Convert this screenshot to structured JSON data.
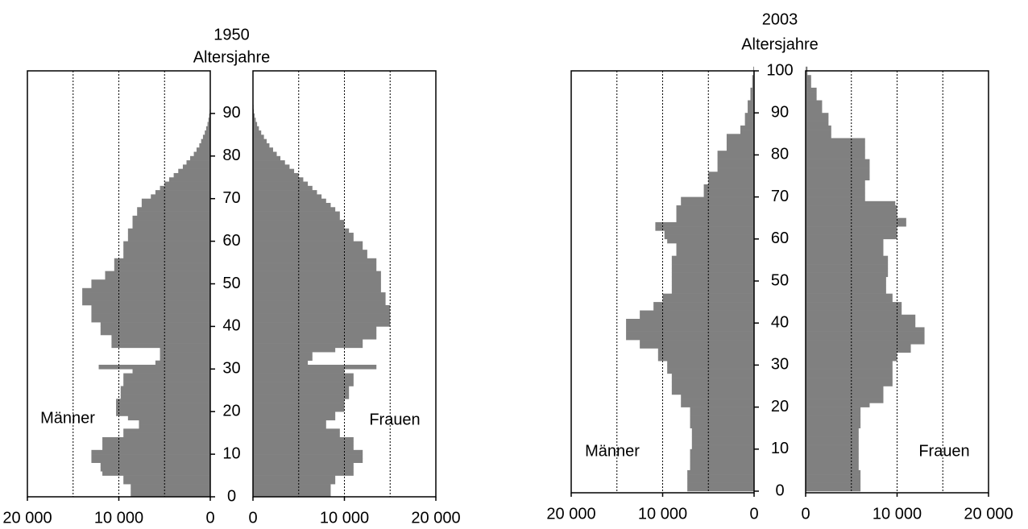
{
  "chart_data": [
    {
      "type": "population_pyramid",
      "title": "1950",
      "y_label": "Altersjahre",
      "x": [
        0,
        1,
        2,
        3,
        4,
        5,
        6,
        7,
        8,
        9,
        10,
        11,
        12,
        13,
        14,
        15,
        16,
        17,
        18,
        19,
        20,
        21,
        22,
        23,
        24,
        25,
        26,
        27,
        28,
        29,
        30,
        31,
        32,
        33,
        34,
        35,
        36,
        37,
        38,
        39,
        40,
        41,
        42,
        43,
        44,
        45,
        46,
        47,
        48,
        49,
        50,
        51,
        52,
        53,
        54,
        55,
        56,
        57,
        58,
        59,
        60,
        61,
        62,
        63,
        64,
        65,
        66,
        67,
        68,
        69,
        70,
        71,
        72,
        73,
        74,
        75,
        76,
        77,
        78,
        79,
        80,
        81,
        82,
        83,
        84,
        85,
        86,
        87,
        88,
        89,
        90,
        91,
        92,
        93,
        94,
        95
      ],
      "series": [
        {
          "name": "Männer",
          "color": "#808080",
          "side": "left",
          "values": [
            8700,
            8700,
            8700,
            9500,
            9500,
            11800,
            12000,
            12000,
            13000,
            13000,
            13000,
            11800,
            11800,
            11800,
            9500,
            9500,
            7800,
            7800,
            9000,
            10300,
            10300,
            10300,
            10300,
            9800,
            9800,
            9800,
            9500,
            9500,
            9500,
            8500,
            12200,
            6000,
            5500,
            5500,
            5500,
            10800,
            10800,
            10800,
            12000,
            12000,
            12000,
            13000,
            13000,
            13000,
            13000,
            14000,
            14000,
            14000,
            14000,
            13000,
            13000,
            11500,
            11500,
            10500,
            10500,
            10500,
            9500,
            9500,
            9500,
            9500,
            9000,
            9000,
            9000,
            8500,
            8500,
            8500,
            8000,
            8000,
            7500,
            7500,
            6500,
            6000,
            5500,
            5000,
            4500,
            4000,
            3500,
            3000,
            2600,
            2200,
            1800,
            1500,
            1200,
            1000,
            800,
            600,
            450,
            300,
            200,
            120,
            60,
            30,
            15,
            8,
            4,
            2
          ]
        },
        {
          "name": "Frauen",
          "color": "#808080",
          "side": "right",
          "values": [
            8500,
            8500,
            8500,
            9000,
            9000,
            11000,
            11000,
            11000,
            12000,
            12000,
            12000,
            11000,
            11000,
            11000,
            9500,
            9500,
            8000,
            8000,
            9000,
            9000,
            10000,
            10000,
            10000,
            10500,
            10500,
            10500,
            11000,
            11000,
            11000,
            10000,
            13500,
            6000,
            6500,
            6500,
            9000,
            12000,
            12000,
            13500,
            13500,
            13500,
            15000,
            15000,
            15000,
            15000,
            15000,
            14500,
            14500,
            14500,
            14000,
            14000,
            14000,
            14000,
            14000,
            13500,
            13500,
            13500,
            12500,
            12500,
            12000,
            12000,
            11000,
            11000,
            10500,
            10000,
            10000,
            9500,
            9500,
            9000,
            8500,
            8000,
            7500,
            7000,
            6500,
            6000,
            5500,
            5000,
            4500,
            4000,
            3500,
            3000,
            2600,
            2200,
            1800,
            1500,
            1200,
            900,
            650,
            450,
            300,
            180,
            100,
            60,
            35,
            20,
            10,
            5
          ]
        }
      ],
      "xlim": [
        0,
        20000
      ],
      "xticks": [
        {
          "value": 20000,
          "label": "20 000"
        },
        {
          "value": 10000,
          "label": "10 000"
        },
        0
      ],
      "xgrid": [
        5000,
        10000,
        15000
      ],
      "ylim": [
        0,
        100
      ],
      "yticks": [
        0,
        10,
        20,
        30,
        40,
        50,
        60,
        70,
        80,
        90
      ]
    },
    {
      "type": "population_pyramid",
      "title": "2003",
      "y_label": "Altersjahre",
      "x": [
        0,
        1,
        2,
        3,
        4,
        5,
        6,
        7,
        8,
        9,
        10,
        11,
        12,
        13,
        14,
        15,
        16,
        17,
        18,
        19,
        20,
        21,
        22,
        23,
        24,
        25,
        26,
        27,
        28,
        29,
        30,
        31,
        32,
        33,
        34,
        35,
        36,
        37,
        38,
        39,
        40,
        41,
        42,
        43,
        44,
        45,
        46,
        47,
        48,
        49,
        50,
        51,
        52,
        53,
        54,
        55,
        56,
        57,
        58,
        59,
        60,
        61,
        62,
        63,
        64,
        65,
        66,
        67,
        68,
        69,
        70,
        71,
        72,
        73,
        74,
        75,
        76,
        77,
        78,
        79,
        80,
        81,
        82,
        83,
        84,
        85,
        86,
        87,
        88,
        89,
        90,
        91,
        92,
        93,
        94,
        95,
        96,
        97,
        98,
        99,
        100
      ],
      "series": [
        {
          "name": "Männer",
          "color": "#808080",
          "side": "left",
          "values": [
            7300,
            7300,
            7300,
            7300,
            7300,
            7000,
            7000,
            7000,
            7000,
            7000,
            6800,
            6800,
            6800,
            6800,
            6800,
            7000,
            7000,
            7000,
            7000,
            7000,
            8000,
            8000,
            8000,
            9000,
            9000,
            9000,
            9000,
            9000,
            9500,
            9500,
            9500,
            10500,
            10500,
            10500,
            12500,
            12500,
            14000,
            14000,
            14000,
            14000,
            14000,
            12500,
            12500,
            11000,
            11000,
            10000,
            10000,
            9000,
            9000,
            9000,
            9000,
            9000,
            9000,
            9000,
            9000,
            9000,
            8500,
            8500,
            8500,
            9500,
            9800,
            9800,
            10800,
            10800,
            8500,
            8500,
            8500,
            8500,
            8000,
            8000,
            5500,
            5500,
            5500,
            5000,
            5000,
            5000,
            4000,
            4000,
            4000,
            4000,
            4000,
            3000,
            3000,
            3000,
            3000,
            1500,
            1500,
            1000,
            1000,
            1000,
            700,
            700,
            700,
            400,
            400,
            400,
            200,
            200,
            200,
            80,
            80
          ]
        },
        {
          "name": "Frauen",
          "color": "#808080",
          "side": "right",
          "values": [
            6000,
            6000,
            6000,
            6000,
            6000,
            5800,
            5800,
            5800,
            5800,
            5800,
            5800,
            5800,
            5800,
            5800,
            5800,
            6000,
            6000,
            6000,
            6000,
            6000,
            7000,
            8500,
            8500,
            8500,
            8500,
            9500,
            9500,
            9500,
            9500,
            9500,
            9500,
            10000,
            10000,
            11500,
            11500,
            13000,
            13000,
            13000,
            13000,
            12000,
            12000,
            12000,
            10500,
            10500,
            10500,
            9500,
            9500,
            8800,
            8800,
            8800,
            8800,
            9000,
            9000,
            9000,
            9000,
            9000,
            8500,
            8500,
            8500,
            8500,
            10000,
            10000,
            10000,
            11000,
            11000,
            10000,
            10000,
            10000,
            9800,
            6500,
            6500,
            6500,
            6500,
            6500,
            7000,
            7000,
            7000,
            7000,
            7000,
            6500,
            6500,
            6500,
            6500,
            6500,
            2800,
            2800,
            2800,
            2500,
            2500,
            2500,
            1800,
            1800,
            1800,
            1200,
            1200,
            1200,
            600,
            600,
            600,
            200,
            200
          ]
        }
      ],
      "xlim": [
        0,
        20000
      ],
      "xticks": [
        {
          "value": 20000,
          "label": "20 000"
        },
        {
          "value": 10000,
          "label": "10 000"
        },
        0
      ],
      "xgrid": [
        5000,
        10000,
        15000
      ],
      "ylim": [
        0,
        100
      ],
      "yticks": [
        0,
        10,
        20,
        30,
        40,
        50,
        60,
        70,
        80,
        90,
        100
      ]
    }
  ]
}
